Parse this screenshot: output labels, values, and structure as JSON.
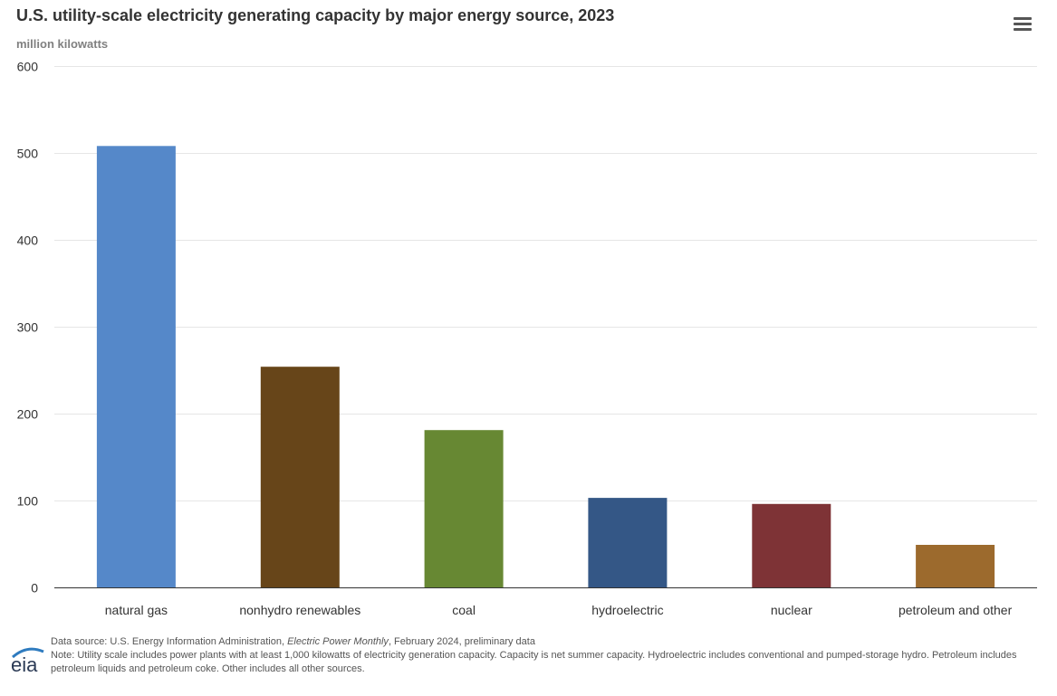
{
  "chart_data": {
    "type": "bar",
    "title": "U.S. utility-scale electricity generating capacity by major energy source, 2023",
    "subtitle": "million kilowatts",
    "categories": [
      "natural gas",
      "nonhydro renewables",
      "coal",
      "hydroelectric",
      "nuclear",
      "petroleum and other"
    ],
    "values": [
      508,
      254,
      181,
      103,
      96,
      49
    ],
    "colors": [
      "#5588C9",
      "#674519",
      "#678833",
      "#345786",
      "#7E3336",
      "#9C6A2D"
    ],
    "ylim": [
      0,
      600
    ],
    "yticks": [
      0,
      100,
      200,
      300,
      400,
      500,
      600
    ],
    "grid": true,
    "legend": false
  },
  "menu": {
    "icon": "hamburger-menu-icon"
  },
  "footer": {
    "logo_text": "eia",
    "source_prefix": "Data source: U.S. Energy Information Administration, ",
    "source_publication": "Electric Power Monthly",
    "source_suffix": ", February 2024, preliminary data",
    "note": "Note: Utility scale includes power plants with at least 1,000 kilowatts of electricity generation capacity. Capacity is net summer capacity. Hydroelectric includes conventional and pumped-storage hydro. Petroleum includes petroleum liquids and petroleum coke. Other includes all other sources."
  }
}
